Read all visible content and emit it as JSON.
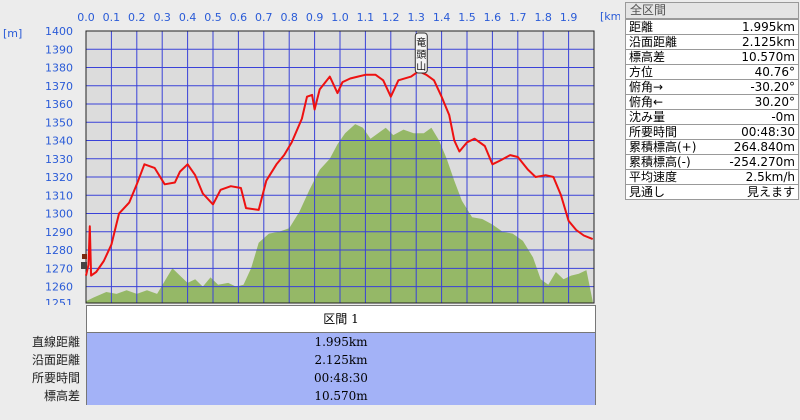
{
  "chart_data": {
    "type": "area",
    "xlabel": "",
    "ylabel": "",
    "x_unit": "[km]",
    "y_unit": "[m]",
    "xlim": [
      0,
      2.0
    ],
    "ylim": [
      1251,
      1400
    ],
    "x_ticks": [
      "0.0",
      "0.1",
      "0.2",
      "0.3",
      "0.4",
      "0.5",
      "0.6",
      "0.7",
      "0.8",
      "0.9",
      "1.0",
      "1.1",
      "1.2",
      "1.3",
      "1.4",
      "1.5",
      "1.6",
      "1.7",
      "1.8",
      "1.9"
    ],
    "y_ticks": [
      "1400",
      "1390",
      "1380",
      "1370",
      "1360",
      "1350",
      "1340",
      "1330",
      "1320",
      "1310",
      "1300",
      "1290",
      "1280",
      "1270",
      "1260",
      "1251"
    ],
    "annotation": {
      "label": "竜頭山",
      "x": 1.32,
      "y": 1377
    },
    "series": [
      {
        "kind": "line",
        "color": "#ee1111",
        "points": [
          [
            0.0,
            1266
          ],
          [
            0.01,
            1272
          ],
          [
            0.015,
            1293
          ],
          [
            0.02,
            1266
          ],
          [
            0.04,
            1268
          ],
          [
            0.07,
            1274
          ],
          [
            0.1,
            1283
          ],
          [
            0.13,
            1300
          ],
          [
            0.17,
            1306
          ],
          [
            0.2,
            1316
          ],
          [
            0.23,
            1327
          ],
          [
            0.27,
            1325
          ],
          [
            0.31,
            1316
          ],
          [
            0.35,
            1317
          ],
          [
            0.37,
            1323
          ],
          [
            0.4,
            1327
          ],
          [
            0.43,
            1321
          ],
          [
            0.46,
            1311
          ],
          [
            0.5,
            1305
          ],
          [
            0.53,
            1313
          ],
          [
            0.57,
            1315
          ],
          [
            0.61,
            1314
          ],
          [
            0.63,
            1303
          ],
          [
            0.68,
            1302
          ],
          [
            0.71,
            1318
          ],
          [
            0.75,
            1327
          ],
          [
            0.78,
            1332
          ],
          [
            0.81,
            1339
          ],
          [
            0.85,
            1352
          ],
          [
            0.87,
            1364
          ],
          [
            0.89,
            1365
          ],
          [
            0.9,
            1357
          ],
          [
            0.92,
            1368
          ],
          [
            0.96,
            1375
          ],
          [
            0.99,
            1366
          ],
          [
            1.01,
            1372
          ],
          [
            1.04,
            1374
          ],
          [
            1.07,
            1375
          ],
          [
            1.1,
            1376
          ],
          [
            1.14,
            1376
          ],
          [
            1.17,
            1373
          ],
          [
            1.2,
            1364
          ],
          [
            1.23,
            1373
          ],
          [
            1.28,
            1375
          ],
          [
            1.31,
            1378
          ],
          [
            1.34,
            1376
          ],
          [
            1.37,
            1373
          ],
          [
            1.4,
            1364
          ],
          [
            1.43,
            1354
          ],
          [
            1.45,
            1340
          ],
          [
            1.47,
            1334
          ],
          [
            1.5,
            1339
          ],
          [
            1.53,
            1341
          ],
          [
            1.57,
            1337
          ],
          [
            1.6,
            1327
          ],
          [
            1.63,
            1329
          ],
          [
            1.67,
            1332
          ],
          [
            1.7,
            1331
          ],
          [
            1.74,
            1324
          ],
          [
            1.77,
            1320
          ],
          [
            1.81,
            1321
          ],
          [
            1.84,
            1320
          ],
          [
            1.87,
            1310
          ],
          [
            1.9,
            1296
          ],
          [
            1.93,
            1291
          ],
          [
            1.96,
            1288
          ],
          [
            1.995,
            1286
          ]
        ]
      },
      {
        "kind": "area",
        "color": "#95b867",
        "points": [
          [
            0.0,
            1252
          ],
          [
            0.03,
            1254
          ],
          [
            0.08,
            1257
          ],
          [
            0.12,
            1256
          ],
          [
            0.16,
            1258
          ],
          [
            0.2,
            1256
          ],
          [
            0.24,
            1258
          ],
          [
            0.28,
            1256
          ],
          [
            0.31,
            1263
          ],
          [
            0.34,
            1270
          ],
          [
            0.37,
            1266
          ],
          [
            0.4,
            1262
          ],
          [
            0.43,
            1264
          ],
          [
            0.46,
            1260
          ],
          [
            0.49,
            1265
          ],
          [
            0.52,
            1261
          ],
          [
            0.56,
            1262
          ],
          [
            0.59,
            1260
          ],
          [
            0.62,
            1261
          ],
          [
            0.65,
            1270
          ],
          [
            0.68,
            1284
          ],
          [
            0.72,
            1289
          ],
          [
            0.76,
            1290
          ],
          [
            0.8,
            1292
          ],
          [
            0.84,
            1301
          ],
          [
            0.88,
            1313
          ],
          [
            0.92,
            1324
          ],
          [
            0.96,
            1330
          ],
          [
            0.99,
            1338
          ],
          [
            1.02,
            1344
          ],
          [
            1.06,
            1349
          ],
          [
            1.09,
            1347
          ],
          [
            1.12,
            1341
          ],
          [
            1.15,
            1344
          ],
          [
            1.18,
            1347
          ],
          [
            1.21,
            1343
          ],
          [
            1.25,
            1346
          ],
          [
            1.29,
            1344
          ],
          [
            1.33,
            1344
          ],
          [
            1.36,
            1347
          ],
          [
            1.39,
            1340
          ],
          [
            1.42,
            1330
          ],
          [
            1.45,
            1318
          ],
          [
            1.48,
            1307
          ],
          [
            1.52,
            1298
          ],
          [
            1.56,
            1297
          ],
          [
            1.6,
            1294
          ],
          [
            1.64,
            1290
          ],
          [
            1.68,
            1289
          ],
          [
            1.72,
            1285
          ],
          [
            1.76,
            1276
          ],
          [
            1.79,
            1264
          ],
          [
            1.82,
            1261
          ],
          [
            1.85,
            1268
          ],
          [
            1.88,
            1264
          ],
          [
            1.91,
            1266
          ],
          [
            1.94,
            1267
          ],
          [
            1.97,
            1269
          ],
          [
            1.995,
            1252
          ]
        ]
      }
    ]
  },
  "summary": {
    "title": "全区間",
    "rows": [
      {
        "label": "距離",
        "value": "1.995km"
      },
      {
        "label": "沿面距離",
        "value": "2.125km"
      },
      {
        "label": "標高差",
        "value": "10.570m"
      },
      {
        "label": "方位",
        "value": "40.76°"
      },
      {
        "label": "俯角→",
        "value": "-30.20°"
      },
      {
        "label": "俯角←",
        "value": "30.20°"
      },
      {
        "label": "沈み量",
        "value": "-0m"
      },
      {
        "label": "所要時間",
        "value": "00:48:30"
      },
      {
        "label": "累積標高(+)",
        "value": "264.840m"
      },
      {
        "label": "累積標高(-)",
        "value": "-254.270m"
      },
      {
        "label": "平均速度",
        "value": "2.5km/h"
      },
      {
        "label": "見通し",
        "value": "見えます"
      }
    ]
  },
  "section": {
    "header": "区間 1",
    "rows": [
      {
        "label": "直線距離",
        "value": "1.995km"
      },
      {
        "label": "沿面距離",
        "value": "2.125km"
      },
      {
        "label": "所要時間",
        "value": "00:48:30"
      },
      {
        "label": "標高差",
        "value": "10.570m"
      }
    ]
  },
  "colors": {
    "grid": "#3a42d8",
    "plot_bg": "#dcdcdc",
    "axis_text": "#2a5bd7",
    "row_bg": "#a3b2f7"
  }
}
